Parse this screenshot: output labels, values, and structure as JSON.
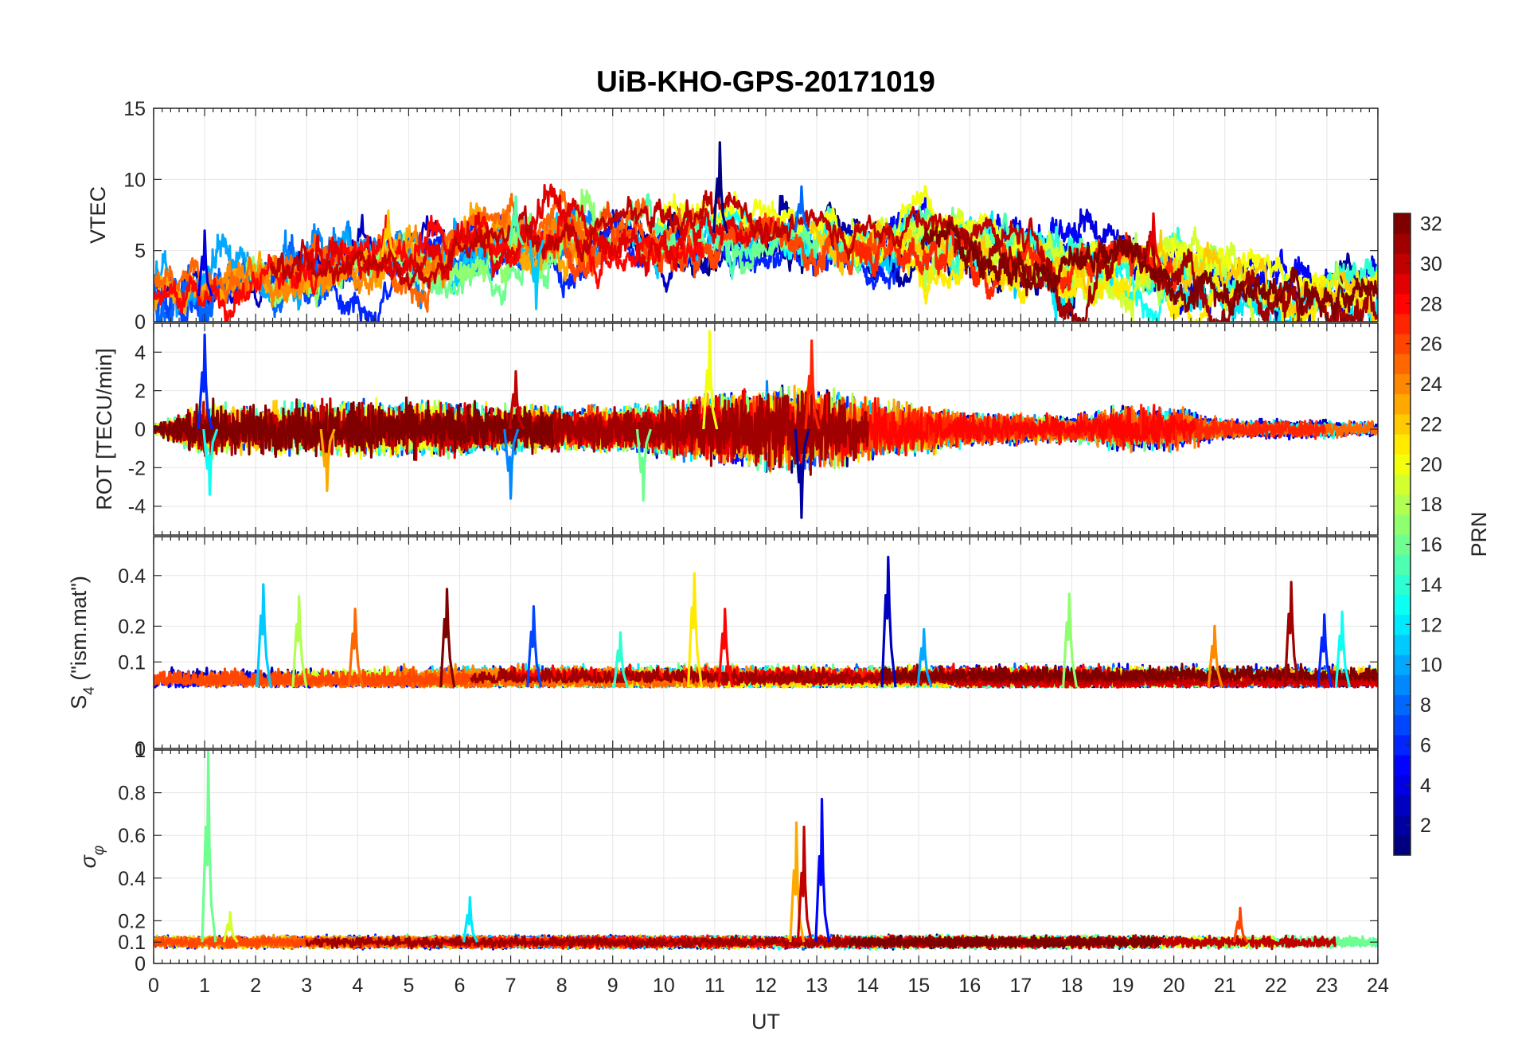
{
  "chart_data": {
    "type": "line",
    "title": "UiB-KHO-GPS-20171019",
    "xlabel": "UT",
    "xlim": [
      0,
      24
    ],
    "xticks": [
      "0",
      "1",
      "2",
      "3",
      "4",
      "5",
      "6",
      "7",
      "8",
      "9",
      "10",
      "11",
      "12",
      "13",
      "14",
      "15",
      "16",
      "17",
      "18",
      "19",
      "20",
      "21",
      "22",
      "23",
      "24"
    ],
    "colorbar": {
      "label": "PRN",
      "range": [
        1,
        32
      ],
      "ticks": [
        "2",
        "4",
        "6",
        "8",
        "10",
        "12",
        "14",
        "16",
        "18",
        "20",
        "22",
        "24",
        "26",
        "28",
        "30",
        "32"
      ],
      "colormap": "jet"
    },
    "panels": [
      {
        "ylabel": "VTEC",
        "ylim": [
          0,
          15
        ],
        "yticks": [
          "0",
          "5",
          "10",
          "15"
        ],
        "base": 4.2,
        "envelope": [
          [
            0,
            2.4
          ],
          [
            1,
            1.8
          ],
          [
            2,
            2.8
          ],
          [
            3,
            3.6
          ],
          [
            4,
            4.6
          ],
          [
            5,
            4.5
          ],
          [
            6,
            4.9
          ],
          [
            7,
            5.3
          ],
          [
            8,
            6.2
          ],
          [
            9,
            6.4
          ],
          [
            10,
            6.1
          ],
          [
            11,
            6.2
          ],
          [
            12,
            6.5
          ],
          [
            13,
            6.3
          ],
          [
            14,
            5.9
          ],
          [
            15,
            6.2
          ],
          [
            16,
            5.6
          ],
          [
            17,
            4.6
          ],
          [
            18,
            4.1
          ],
          [
            19,
            4.6
          ],
          [
            20,
            3.6
          ],
          [
            21,
            2.9
          ],
          [
            22,
            2.3
          ],
          [
            23,
            2.3
          ],
          [
            24,
            2.6
          ]
        ],
        "spikes": [
          [
            11.1,
            12.6
          ],
          [
            12.7,
            9.5
          ],
          [
            7.1,
            8.8
          ],
          [
            4.6,
            7.8
          ],
          [
            19.6,
            7.6
          ],
          [
            1.0,
            6.4
          ],
          [
            7.5,
            0.9
          ],
          [
            23.2,
            4.1
          ]
        ]
      },
      {
        "ylabel": "ROT [TECU/min]",
        "ylim": [
          -5.5,
          5.5
        ],
        "yticks": [
          "-4",
          "-2",
          "0",
          "2",
          "4"
        ],
        "base": 0,
        "envelope": [
          [
            0,
            0.15
          ],
          [
            1,
            1.2
          ],
          [
            2,
            1.0
          ],
          [
            4,
            1.1
          ],
          [
            6,
            1.0
          ],
          [
            8,
            0.8
          ],
          [
            10,
            1.0
          ],
          [
            11,
            1.3
          ],
          [
            12,
            1.7
          ],
          [
            13,
            1.6
          ],
          [
            14,
            1.1
          ],
          [
            15,
            1.0
          ],
          [
            16,
            0.6
          ],
          [
            18,
            0.5
          ],
          [
            19,
            0.9
          ],
          [
            20,
            0.8
          ],
          [
            21,
            0.4
          ],
          [
            24,
            0.3
          ]
        ],
        "spikes": [
          [
            1.0,
            4.9
          ],
          [
            1.1,
            -3.4
          ],
          [
            10.9,
            5.1
          ],
          [
            12.9,
            4.6
          ],
          [
            12.7,
            -4.6
          ],
          [
            7.0,
            -3.6
          ],
          [
            9.6,
            -3.7
          ],
          [
            3.4,
            -3.2
          ],
          [
            7.1,
            3.0
          ]
        ]
      },
      {
        "ylabel": "S4 (\"ism.mat\")",
        "ylabel_main": "S",
        "ylabel_sub": "4",
        "ylabel_rest": " (\"ism.mat\")",
        "ylim": [
          0,
          0.6
        ],
        "yticks": [
          "0",
          "0.1",
          "0.2",
          "0.4"
        ],
        "ytick_values": [
          0,
          0.1,
          0.2,
          0.4
        ],
        "scale": "sqrt",
        "base": 0.05,
        "envelope": [
          [
            0,
            0.05
          ],
          [
            24,
            0.05
          ]
        ],
        "spikes": [
          [
            2.15,
            0.36
          ],
          [
            2.85,
            0.31
          ],
          [
            3.95,
            0.26
          ],
          [
            5.75,
            0.34
          ],
          [
            7.45,
            0.27
          ],
          [
            9.15,
            0.18
          ],
          [
            10.6,
            0.41
          ],
          [
            11.2,
            0.26
          ],
          [
            14.4,
            0.49
          ],
          [
            15.1,
            0.19
          ],
          [
            17.95,
            0.32
          ],
          [
            20.8,
            0.2
          ],
          [
            22.3,
            0.37
          ],
          [
            22.95,
            0.24
          ],
          [
            23.3,
            0.25
          ]
        ]
      },
      {
        "ylabel": "σφ",
        "ylabel_main": "σ",
        "ylabel_sub": "φ",
        "ylim": [
          0,
          1
        ],
        "yticks": [
          "0",
          "0.1",
          "0.2",
          "0.4",
          "0.6",
          "0.8",
          "1"
        ],
        "ytick_values": [
          0,
          0.1,
          0.2,
          0.4,
          0.6,
          0.8,
          1
        ],
        "base": 0.1,
        "envelope": [
          [
            0,
            0.1
          ],
          [
            24,
            0.1
          ]
        ],
        "spikes": [
          [
            1.07,
            1.0
          ],
          [
            12.6,
            0.66
          ],
          [
            12.75,
            0.64
          ],
          [
            13.1,
            0.77
          ],
          [
            6.2,
            0.31
          ],
          [
            1.5,
            0.24
          ],
          [
            21.3,
            0.26
          ]
        ]
      }
    ]
  }
}
